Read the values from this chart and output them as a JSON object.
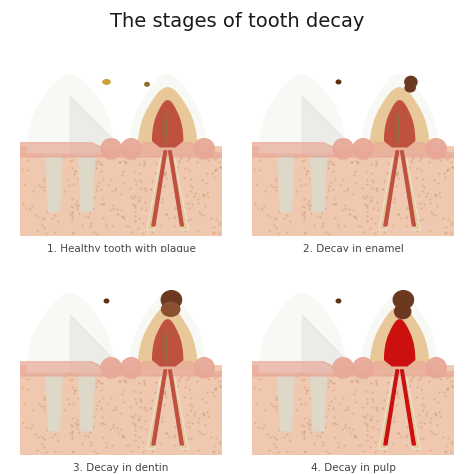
{
  "title": "The stages of tooth decay",
  "title_fontsize": 14,
  "title_color": "#1a1a1a",
  "background_color": "#ffffff",
  "labels": [
    "1. Healthy tooth with plaque",
    "2. Decay in enamel",
    "3. Decay in dentin",
    "4. Decay in pulp"
  ],
  "label_fontsize": 7.5,
  "label_color": "#444444",
  "enamel_color": "#f8f8f5",
  "enamel_shadow": "#dcdcd0",
  "dentin_color": "#e8c898",
  "dentin_inner": "#d4a870",
  "pulp_color": "#c05040",
  "pulp_inner": "#a03020",
  "gum_color": "#e8a898",
  "gum_bg": "#f0c8b0",
  "bone_color": "#f0c8a0",
  "root_outer": "#d4b888",
  "root_canal_color": "#b84030",
  "decay_color": "#6b3820",
  "decay_light": "#8b5030",
  "plaque_color": "#c8a030",
  "pulp_inflamed_color": "#cc1010",
  "nerve_color": "#708840",
  "nerve_color2": "#906040"
}
